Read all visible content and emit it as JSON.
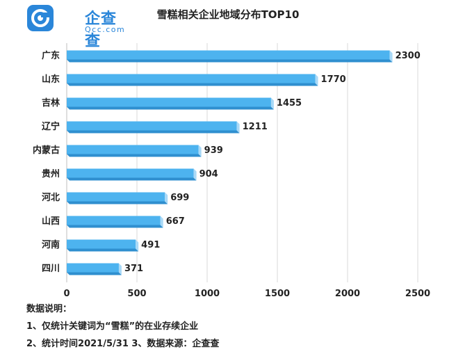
{
  "brand": {
    "name_zh": "企查查",
    "name_en": "Qcc.com",
    "accent": "#2a86d9"
  },
  "chart_data": {
    "type": "bar",
    "orientation": "horizontal",
    "title": "雪糕相关企业地域分布TOP10",
    "categories": [
      "广东",
      "山东",
      "吉林",
      "辽宁",
      "内蒙古",
      "贵州",
      "河北",
      "山西",
      "河南",
      "四川"
    ],
    "values": [
      2300,
      1770,
      1455,
      1211,
      939,
      904,
      699,
      667,
      491,
      371
    ],
    "xlim": [
      0,
      2500
    ],
    "xticks": [
      0,
      500,
      1000,
      1500,
      2000,
      2500
    ],
    "grid": true,
    "bar_color": "#4db3ef"
  },
  "notes": {
    "heading": "数据说明：",
    "line1": "1、仅统计关键词为“雪糕”的在业存续企业",
    "line2": "2、统计时间2021/5/31   3、数据来源：企查查"
  }
}
